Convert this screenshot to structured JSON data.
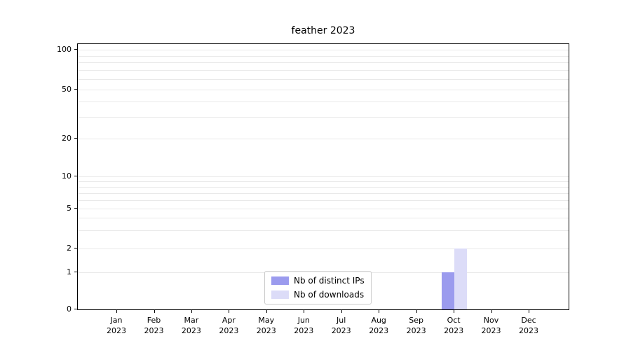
{
  "chart_data": {
    "type": "bar",
    "title": "feather 2023",
    "categories": [
      "Jan 2023",
      "Feb 2023",
      "Mar 2023",
      "Apr 2023",
      "May 2023",
      "Jun 2023",
      "Jul 2023",
      "Aug 2023",
      "Sep 2023",
      "Oct 2023",
      "Nov 2023",
      "Dec 2023"
    ],
    "series": [
      {
        "name": "Nb of distinct IPs",
        "color": "#9b9bee",
        "values": [
          0,
          0,
          0,
          0,
          0,
          0,
          0,
          0,
          0,
          1,
          0,
          0
        ]
      },
      {
        "name": "Nb of downloads",
        "color": "#dcdcf8",
        "values": [
          0,
          0,
          0,
          0,
          0,
          0,
          0,
          0,
          0,
          2,
          0,
          0
        ]
      }
    ],
    "yticks": [
      0,
      1,
      2,
      5,
      10,
      20,
      50,
      100
    ],
    "yscale": "symlog",
    "ylim": [
      0,
      110
    ],
    "xlabel": "",
    "ylabel": "",
    "grid": "horizontal-minor",
    "legend_position": "lower-center-inside"
  },
  "colors": {
    "background": "#ffffff",
    "axis": "#000000",
    "gridline": "#e9e9e9",
    "legend_border": "#cccccc"
  }
}
